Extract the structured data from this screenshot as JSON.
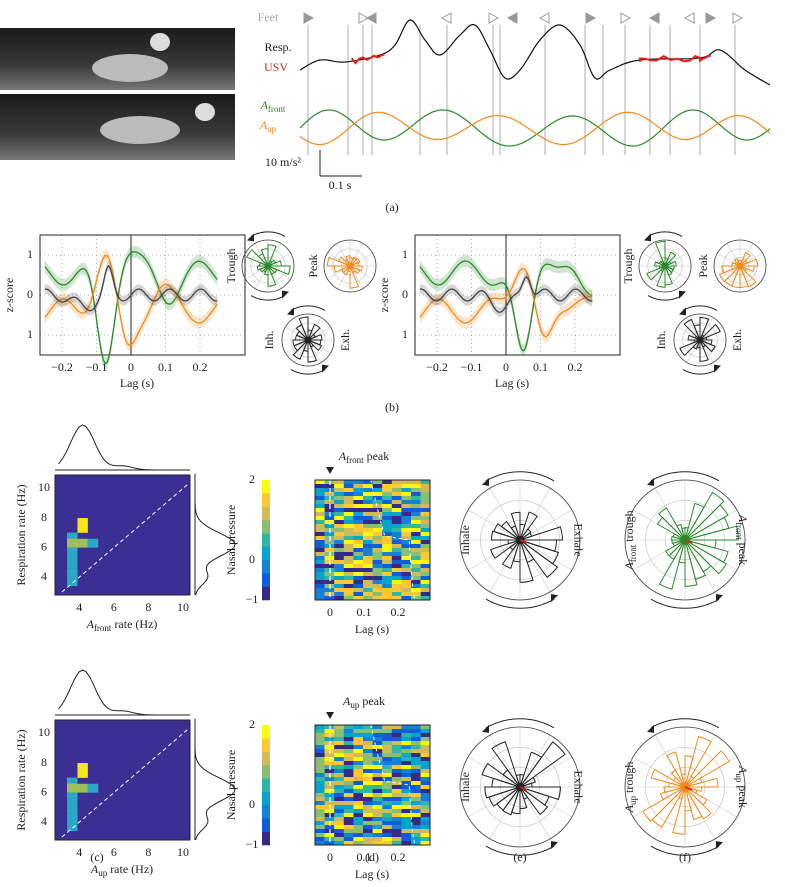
{
  "panel_a": {
    "feet": "Feet",
    "resp": "Resp.",
    "usv": "USV",
    "a_front": [
      "A",
      "front"
    ],
    "a_up": [
      "A",
      "up"
    ],
    "scale_y": "10 m/s²",
    "scale_x": "0.1 s",
    "label": "(a)"
  },
  "panel_b": {
    "ylabel": "z-score",
    "xlabel": "Lag (s)",
    "yticks": [
      "1",
      "0",
      "1"
    ],
    "xticks": [
      "−0.2",
      "−0.1",
      "0",
      "0.1",
      "0.2"
    ],
    "polar": {
      "trough": "Trough",
      "peak": "Peak",
      "inh": "Inh.",
      "exh": "Exh."
    },
    "label": "(b)"
  },
  "panel_c": {
    "ylabel": "Respiration rate (Hz)",
    "xlabel_top": [
      "A",
      "front",
      " rate (Hz)"
    ],
    "xlabel_bottom": [
      "A",
      "up",
      " rate (Hz)"
    ],
    "yticks": [
      "10",
      "8",
      "6",
      "4"
    ],
    "xticks": [
      "4",
      "6",
      "8",
      "10"
    ],
    "label": "(c)"
  },
  "panel_d": {
    "ylabel": "Nasal pressure",
    "xlabel": "Lag (s)",
    "title_top": [
      "A",
      "front",
      " peak"
    ],
    "title_bottom": [
      "A",
      "up",
      " peak"
    ],
    "cticks": [
      "2",
      "0",
      "−1"
    ],
    "xticks": [
      "0",
      "0.1",
      "0.2"
    ],
    "label": "(d)"
  },
  "panel_e": {
    "inhale": "Inhale",
    "exhale": "Exhale",
    "label": "(e)"
  },
  "panel_f": {
    "trough_top": [
      "A",
      "front",
      " trough"
    ],
    "peak_top": [
      "A",
      "front",
      " peak"
    ],
    "trough_bottom": [
      "A",
      "up",
      " trough"
    ],
    "peak_bottom": [
      "A",
      "up",
      " peak"
    ],
    "label": "(f)"
  }
}
